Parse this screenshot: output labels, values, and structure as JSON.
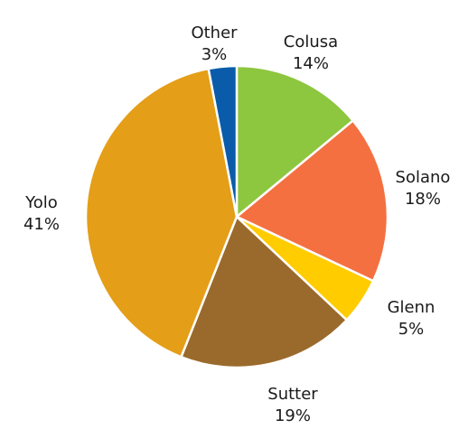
{
  "chart_data": {
    "type": "pie",
    "slices": [
      {
        "label": "Colusa",
        "value": 14,
        "value_label": "14%",
        "color": "#8dc63f"
      },
      {
        "label": "Solano",
        "value": 18,
        "value_label": "18%",
        "color": "#f47041"
      },
      {
        "label": "Glenn",
        "value": 5,
        "value_label": "5%",
        "color": "#ffcc00"
      },
      {
        "label": "Sutter",
        "value": 19,
        "value_label": "19%",
        "color": "#9a6a2c"
      },
      {
        "label": "Yolo",
        "value": 41,
        "value_label": "41%",
        "color": "#e49e17"
      },
      {
        "label": "Other",
        "value": 3,
        "value_label": "3%",
        "color": "#0a5caa"
      }
    ],
    "legend": "none",
    "start": "12 o'clock",
    "direction": "clockwise"
  }
}
